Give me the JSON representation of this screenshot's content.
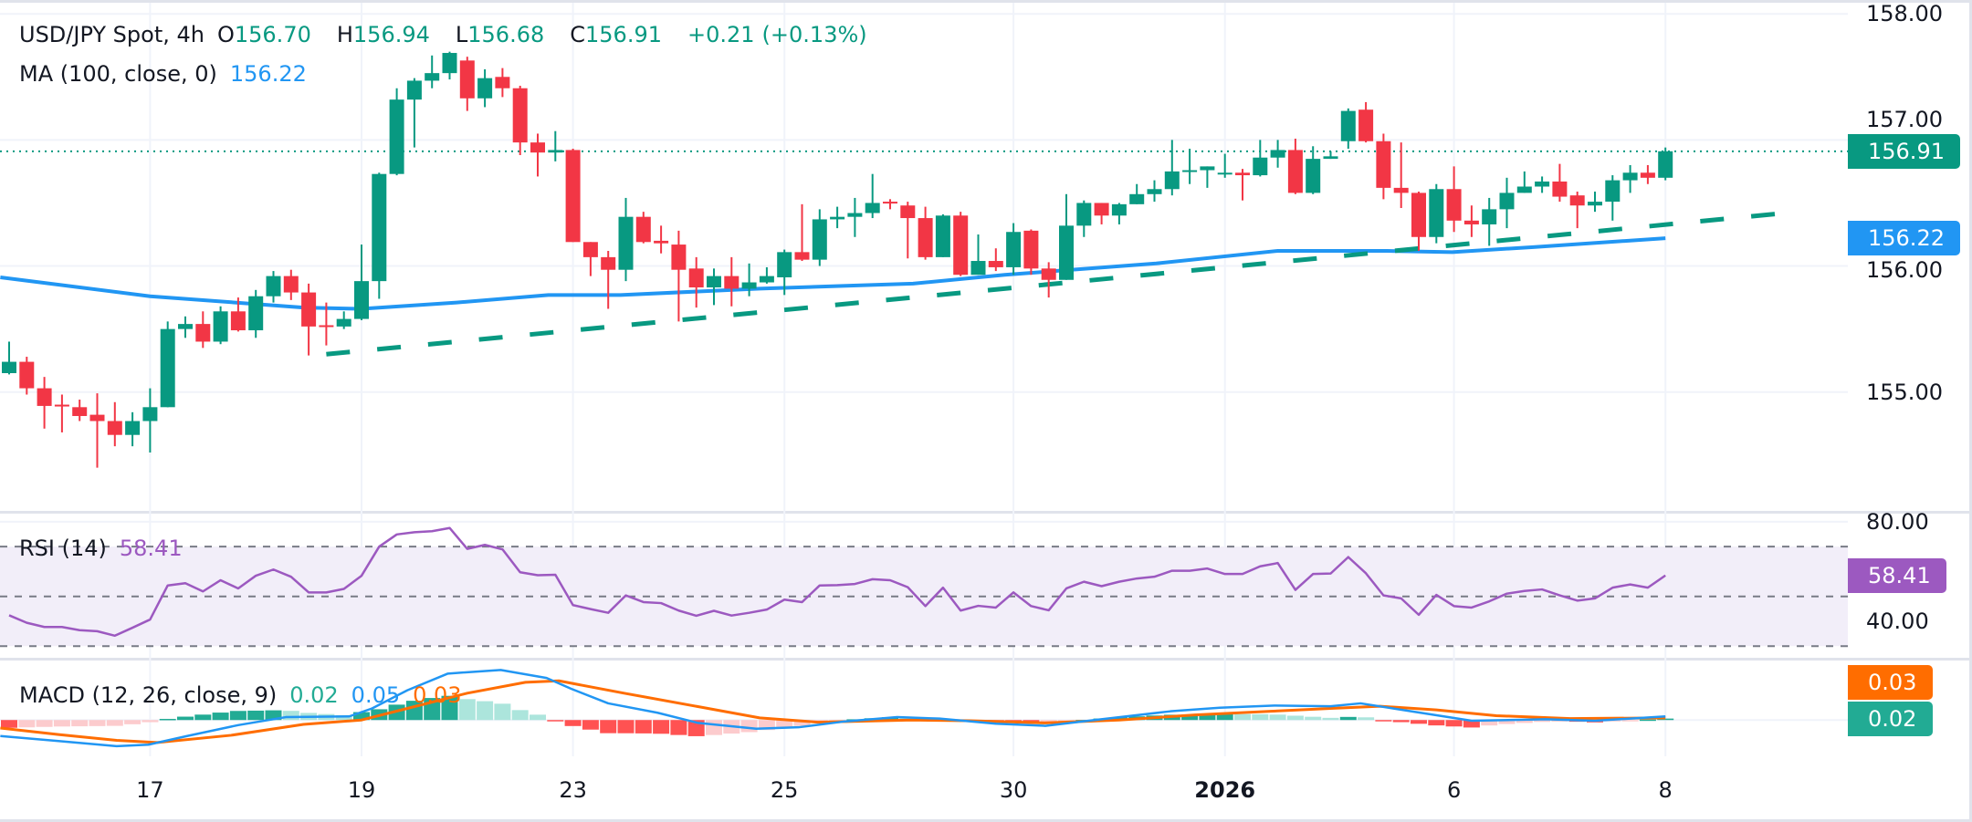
{
  "legend": {
    "symbol": "USD/JPY Spot, 4h",
    "o_label": "O",
    "open": "156.70",
    "h_label": "H",
    "high": "156.94",
    "l_label": "L",
    "low": "156.68",
    "c_label": "C",
    "close": "156.91",
    "change": "+0.21",
    "change_pct": "(+0.13%)",
    "ma_label": "MA (100, close, 0)",
    "ma_value": "156.22"
  },
  "rsi_legend": {
    "label": "RSI (14)",
    "value": "58.41"
  },
  "macd_legend": {
    "label": "MACD (12, 26, close, 9)",
    "hist": "0.02",
    "macd": "0.05",
    "signal": "0.03"
  },
  "price_axis": {
    "ticks": [
      "158.00",
      "157.00",
      "156.00",
      "155.00"
    ],
    "last_price_badge": "156.91",
    "ma_badge": "156.22"
  },
  "rsi_axis": {
    "ticks": [
      "80.00",
      "40.00"
    ],
    "badge": "58.41"
  },
  "macd_axis": {
    "signal_badge": "0.03",
    "hist_badge": "0.02"
  },
  "colors": {
    "up": "#089981",
    "down": "#f23645",
    "ma": "#2196f3",
    "trendline": "#089981",
    "rsi": "#9c59c0",
    "rsi_band": "#f2eef9",
    "macd": "#2196f3",
    "signal": "#ff6d00",
    "hist_up_strong": "#22ab94",
    "hist_up_weak": "#ace5dc",
    "hist_down_strong": "#ff5252",
    "hist_down_weak": "#fccbcd",
    "grid": "#f0f3fa",
    "level": "#787b86"
  },
  "chart_data": [
    {
      "type": "candlestick",
      "ylim": [
        154.05,
        158.11
      ],
      "grid": true,
      "x_ticks": [
        {
          "label": "17",
          "bar": 8
        },
        {
          "label": "19",
          "bar": 20
        },
        {
          "label": "23",
          "bar": 32
        },
        {
          "label": "25",
          "bar": 44
        },
        {
          "label": "30",
          "bar": 57
        },
        {
          "label": "2026",
          "bar": 69,
          "bold": true
        },
        {
          "label": "6",
          "bar": 82
        },
        {
          "label": "8",
          "bar": 94
        }
      ],
      "ohlc": [
        [
          155.15,
          155.4,
          155.14,
          155.24
        ],
        [
          155.24,
          155.28,
          154.98,
          155.03
        ],
        [
          155.03,
          155.12,
          154.71,
          154.89
        ],
        [
          154.9,
          154.98,
          154.68,
          154.89
        ],
        [
          154.88,
          154.94,
          154.77,
          154.81
        ],
        [
          154.82,
          154.99,
          154.4,
          154.77
        ],
        [
          154.77,
          154.92,
          154.57,
          154.66
        ],
        [
          154.66,
          154.84,
          154.57,
          154.77
        ],
        [
          154.77,
          155.03,
          154.52,
          154.88
        ],
        [
          154.88,
          155.56,
          154.88,
          155.5
        ],
        [
          155.5,
          155.6,
          155.43,
          155.54
        ],
        [
          155.54,
          155.64,
          155.35,
          155.4
        ],
        [
          155.4,
          155.68,
          155.38,
          155.64
        ],
        [
          155.64,
          155.75,
          155.48,
          155.49
        ],
        [
          155.49,
          155.81,
          155.43,
          155.76
        ],
        [
          155.76,
          155.96,
          155.71,
          155.92
        ],
        [
          155.92,
          155.97,
          155.73,
          155.79
        ],
        [
          155.79,
          155.86,
          155.29,
          155.52
        ],
        [
          155.53,
          155.71,
          155.37,
          155.52
        ],
        [
          155.52,
          155.64,
          155.5,
          155.58
        ],
        [
          155.58,
          156.17,
          155.57,
          155.88
        ],
        [
          155.88,
          156.74,
          155.74,
          156.73
        ],
        [
          156.73,
          157.41,
          156.72,
          157.32
        ],
        [
          157.32,
          157.49,
          156.94,
          157.47
        ],
        [
          157.47,
          157.67,
          157.41,
          157.53
        ],
        [
          157.53,
          157.7,
          157.48,
          157.69
        ],
        [
          157.63,
          157.66,
          157.23,
          157.33
        ],
        [
          157.33,
          157.56,
          157.26,
          157.49
        ],
        [
          157.5,
          157.57,
          157.34,
          157.41
        ],
        [
          157.41,
          157.43,
          156.88,
          156.98
        ],
        [
          156.98,
          157.05,
          156.71,
          156.9
        ],
        [
          156.9,
          157.07,
          156.83,
          156.92
        ],
        [
          156.92,
          156.93,
          156.19,
          156.19
        ],
        [
          156.19,
          156.19,
          155.92,
          156.07
        ],
        [
          156.07,
          156.12,
          155.66,
          155.97
        ],
        [
          155.97,
          156.54,
          155.88,
          156.39
        ],
        [
          156.39,
          156.43,
          156.18,
          156.19
        ],
        [
          156.2,
          156.32,
          156.1,
          156.18
        ],
        [
          156.17,
          156.28,
          155.56,
          155.97
        ],
        [
          155.98,
          156.07,
          155.67,
          155.83
        ],
        [
          155.83,
          155.98,
          155.69,
          155.92
        ],
        [
          155.92,
          156.07,
          155.68,
          155.82
        ],
        [
          155.82,
          156.02,
          155.76,
          155.87
        ],
        [
          155.87,
          155.99,
          155.86,
          155.92
        ],
        [
          155.91,
          156.13,
          155.77,
          156.11
        ],
        [
          156.11,
          156.49,
          156.04,
          156.05
        ],
        [
          156.05,
          156.45,
          156.0,
          156.37
        ],
        [
          156.37,
          156.47,
          156.3,
          156.39
        ],
        [
          156.39,
          156.54,
          156.23,
          156.42
        ],
        [
          156.42,
          156.73,
          156.38,
          156.5
        ],
        [
          156.51,
          156.53,
          156.45,
          156.5
        ],
        [
          156.48,
          156.51,
          156.06,
          156.38
        ],
        [
          156.38,
          156.47,
          156.05,
          156.07
        ],
        [
          156.07,
          156.41,
          156.07,
          156.4
        ],
        [
          156.4,
          156.43,
          155.92,
          155.93
        ],
        [
          155.93,
          156.25,
          155.93,
          156.04
        ],
        [
          156.04,
          156.14,
          155.96,
          155.99
        ],
        [
          155.99,
          156.34,
          155.93,
          156.27
        ],
        [
          156.28,
          156.29,
          155.93,
          155.98
        ],
        [
          155.98,
          156.03,
          155.75,
          155.89
        ],
        [
          155.89,
          156.57,
          155.89,
          156.32
        ],
        [
          156.32,
          156.52,
          156.23,
          156.5
        ],
        [
          156.5,
          156.5,
          156.33,
          156.4
        ],
        [
          156.4,
          156.5,
          156.33,
          156.49
        ],
        [
          156.49,
          156.65,
          156.49,
          156.57
        ],
        [
          156.57,
          156.68,
          156.51,
          156.61
        ],
        [
          156.61,
          157.0,
          156.56,
          156.75
        ],
        [
          156.75,
          156.93,
          156.65,
          156.76
        ],
        [
          156.76,
          156.79,
          156.62,
          156.79
        ],
        [
          156.73,
          156.89,
          156.7,
          156.74
        ],
        [
          156.74,
          156.77,
          156.52,
          156.72
        ],
        [
          156.72,
          157.0,
          156.71,
          156.86
        ],
        [
          156.86,
          157.0,
          156.78,
          156.92
        ],
        [
          156.92,
          157.01,
          156.57,
          156.58
        ],
        [
          156.58,
          156.95,
          156.57,
          156.85
        ],
        [
          156.85,
          156.91,
          156.85,
          156.87
        ],
        [
          156.99,
          157.25,
          156.93,
          157.23
        ],
        [
          157.24,
          157.3,
          156.98,
          156.99
        ],
        [
          156.99,
          157.05,
          156.53,
          156.62
        ],
        [
          156.62,
          156.98,
          156.46,
          156.58
        ],
        [
          156.58,
          156.59,
          156.12,
          156.23
        ],
        [
          156.23,
          156.65,
          156.18,
          156.61
        ],
        [
          156.61,
          156.79,
          156.27,
          156.36
        ],
        [
          156.36,
          156.48,
          156.23,
          156.33
        ],
        [
          156.33,
          156.54,
          156.16,
          156.45
        ],
        [
          156.45,
          156.7,
          156.3,
          156.58
        ],
        [
          156.58,
          156.75,
          156.58,
          156.63
        ],
        [
          156.63,
          156.71,
          156.58,
          156.67
        ],
        [
          156.67,
          156.81,
          156.51,
          156.55
        ],
        [
          156.56,
          156.59,
          156.3,
          156.48
        ],
        [
          156.48,
          156.59,
          156.43,
          156.51
        ],
        [
          156.51,
          156.72,
          156.36,
          156.68
        ],
        [
          156.68,
          156.8,
          156.58,
          156.74
        ],
        [
          156.74,
          156.8,
          156.65,
          156.7
        ],
        [
          156.7,
          156.94,
          156.68,
          156.91
        ]
      ],
      "ma100": {
        "points": [
          [
            -0.5,
            155.91
          ],
          [
            8,
            155.76
          ],
          [
            16.7,
            155.67
          ],
          [
            20,
            155.66
          ],
          [
            25.4,
            155.71
          ],
          [
            30.6,
            155.77
          ],
          [
            34.7,
            155.77
          ],
          [
            42.6,
            155.82
          ],
          [
            51.3,
            155.86
          ],
          [
            56.5,
            155.93
          ],
          [
            65.1,
            156.02
          ],
          [
            72,
            156.12
          ],
          [
            78.2,
            156.12
          ],
          [
            81.9,
            156.11
          ],
          [
            86.5,
            156.15
          ],
          [
            94,
            156.22
          ]
        ]
      },
      "trendline": {
        "style": "dashed",
        "points": [
          [
            18,
            155.3
          ],
          [
            100.8,
            156.42
          ]
        ]
      },
      "last_price": 156.91
    },
    {
      "type": "line",
      "ylim": [
        24.95,
        84.0
      ],
      "levels": [
        70,
        50,
        30
      ],
      "values": [
        42.4,
        39.4,
        37.7,
        37.7,
        36.4,
        36.0,
        34.2,
        37.4,
        40.7,
        54.4,
        55.3,
        52.0,
        56.5,
        53.2,
        58.3,
        60.8,
        57.9,
        51.6,
        51.6,
        53.0,
        58.3,
        70.0,
        74.9,
        75.8,
        76.2,
        77.5,
        69.1,
        70.7,
        68.9,
        59.7,
        58.5,
        58.7,
        46.5,
        44.9,
        43.4,
        50.4,
        47.7,
        47.3,
        44.3,
        42.2,
        44.2,
        42.3,
        43.4,
        44.7,
        48.7,
        47.7,
        54.4,
        54.5,
        55.0,
        56.9,
        56.5,
        53.7,
        46.1,
        53.5,
        44.3,
        46.2,
        45.5,
        51.6,
        46.1,
        44.4,
        53.2,
        55.9,
        54.1,
        55.9,
        57.2,
        57.9,
        60.3,
        60.3,
        61.2,
        59.0,
        59.0,
        62.1,
        63.4,
        52.6,
        59.0,
        59.2,
        65.8,
        59.3,
        50.4,
        49.2,
        42.6,
        50.6,
        46.1,
        45.5,
        48.0,
        51.1,
        52.2,
        52.8,
        50.4,
        48.3,
        49.2,
        53.5,
        54.8,
        53.5,
        58.41
      ]
    },
    {
      "type": "line+bar",
      "ylim": [
        -0.5,
        0.82
      ],
      "macd_points": [
        [
          -0.5,
          -0.22
        ],
        [
          2.8,
          -0.29
        ],
        [
          6.1,
          -0.36
        ],
        [
          7.9,
          -0.34
        ],
        [
          10.1,
          -0.22
        ],
        [
          13,
          -0.07
        ],
        [
          15.7,
          0.04
        ],
        [
          19.3,
          0.05
        ],
        [
          20.6,
          0.16
        ],
        [
          22.6,
          0.41
        ],
        [
          24.9,
          0.64
        ],
        [
          27.9,
          0.69
        ],
        [
          30.5,
          0.58
        ],
        [
          31.9,
          0.43
        ],
        [
          34,
          0.23
        ],
        [
          36.8,
          0.1
        ],
        [
          39.1,
          -0.04
        ],
        [
          42.4,
          -0.12
        ],
        [
          44.8,
          -0.1
        ],
        [
          47.4,
          -0.02
        ],
        [
          50.4,
          0.04
        ],
        [
          52.8,
          0.02
        ],
        [
          56,
          -0.05
        ],
        [
          58.8,
          -0.08
        ],
        [
          61.6,
          0
        ],
        [
          65.9,
          0.12
        ],
        [
          68.7,
          0.17
        ],
        [
          71.8,
          0.2
        ],
        [
          75,
          0.19
        ],
        [
          76.7,
          0.23
        ],
        [
          80.1,
          0.1
        ],
        [
          83,
          -0.01
        ],
        [
          87.2,
          0.01
        ],
        [
          90,
          -0.01
        ],
        [
          94,
          0.05
        ]
      ],
      "signal_points": [
        [
          -0.5,
          -0.11
        ],
        [
          2.8,
          -0.2
        ],
        [
          6.1,
          -0.28
        ],
        [
          8.4,
          -0.31
        ],
        [
          12.6,
          -0.21
        ],
        [
          16.7,
          -0.06
        ],
        [
          20,
          0.0
        ],
        [
          22.6,
          0.16
        ],
        [
          26,
          0.37
        ],
        [
          29.3,
          0.52
        ],
        [
          31.2,
          0.54
        ],
        [
          34.9,
          0.37
        ],
        [
          39.2,
          0.18
        ],
        [
          42.6,
          0.03
        ],
        [
          45.9,
          -0.03
        ],
        [
          51.2,
          0.0
        ],
        [
          54.5,
          -0.01
        ],
        [
          58.8,
          -0.04
        ],
        [
          63,
          0
        ],
        [
          67.3,
          0.07
        ],
        [
          71.6,
          0.12
        ],
        [
          75,
          0.16
        ],
        [
          77.8,
          0.19
        ],
        [
          81,
          0.14
        ],
        [
          84.4,
          0.06
        ],
        [
          88.6,
          0.02
        ],
        [
          94,
          0.03
        ]
      ],
      "zero_line": true
    }
  ]
}
